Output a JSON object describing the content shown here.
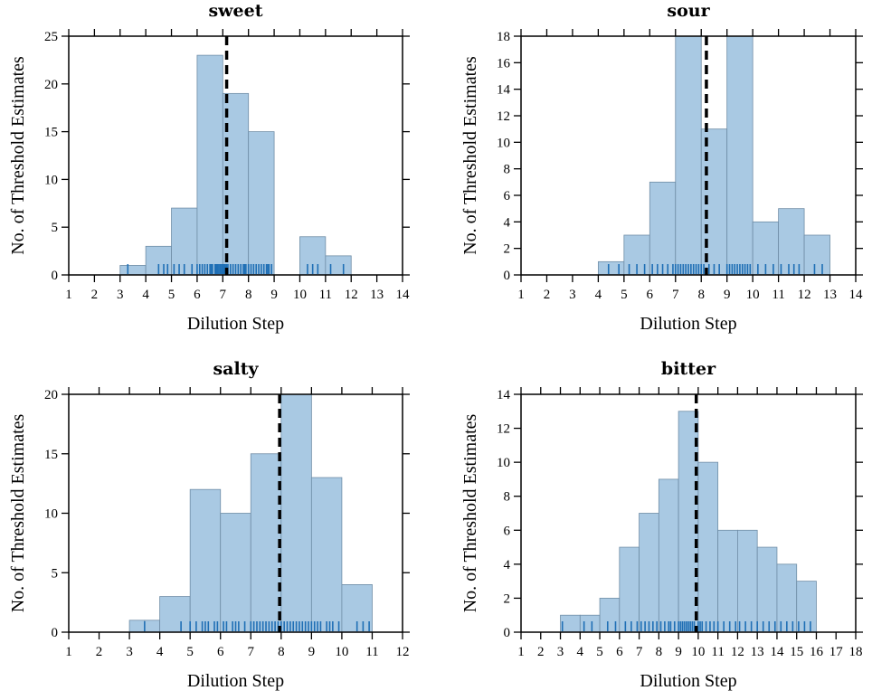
{
  "chart_data": [
    {
      "type": "histogram",
      "title": "sweet",
      "xlabel": "Dilution Step",
      "ylabel": "No. of Threshold Estimates",
      "xlim": [
        1,
        14
      ],
      "ylim": [
        0,
        25
      ],
      "xticks": [
        1,
        2,
        3,
        4,
        5,
        6,
        7,
        8,
        9,
        10,
        11,
        12,
        13,
        14
      ],
      "yticks": [
        0,
        5,
        10,
        15,
        20,
        25
      ],
      "bins": [
        {
          "start": 3,
          "end": 4,
          "count": 1
        },
        {
          "start": 4,
          "end": 5,
          "count": 3
        },
        {
          "start": 5,
          "end": 6,
          "count": 7
        },
        {
          "start": 6,
          "end": 7,
          "count": 23
        },
        {
          "start": 7,
          "end": 8,
          "count": 19
        },
        {
          "start": 8,
          "end": 9,
          "count": 15
        },
        {
          "start": 9,
          "end": 10,
          "count": 0
        },
        {
          "start": 10,
          "end": 11,
          "count": 4
        },
        {
          "start": 11,
          "end": 12,
          "count": 2
        }
      ],
      "reference_line": 7.15,
      "rug": [
        3.3,
        4.5,
        4.7,
        4.85,
        5.1,
        5.3,
        5.5,
        5.8,
        6.0,
        6.1,
        6.2,
        6.3,
        6.4,
        6.5,
        6.55,
        6.6,
        6.7,
        6.75,
        6.8,
        6.85,
        6.9,
        6.95,
        7.0,
        7.05,
        7.1,
        7.15,
        7.2,
        7.3,
        7.4,
        7.5,
        7.6,
        7.7,
        7.8,
        7.85,
        7.9,
        8.0,
        8.1,
        8.2,
        8.3,
        8.4,
        8.5,
        8.6,
        8.7,
        8.75,
        8.8,
        8.9,
        10.3,
        10.5,
        10.7,
        11.2,
        11.7
      ]
    },
    {
      "type": "histogram",
      "title": "sour",
      "xlabel": "Dilution Step",
      "ylabel": "No. of Threshold Estimates",
      "xlim": [
        1,
        14
      ],
      "ylim": [
        0,
        18
      ],
      "xticks": [
        1,
        2,
        3,
        4,
        5,
        6,
        7,
        8,
        9,
        10,
        11,
        12,
        13,
        14
      ],
      "yticks": [
        0,
        2,
        4,
        6,
        8,
        10,
        12,
        14,
        16,
        18
      ],
      "bins": [
        {
          "start": 4,
          "end": 5,
          "count": 1
        },
        {
          "start": 5,
          "end": 6,
          "count": 3
        },
        {
          "start": 6,
          "end": 7,
          "count": 7
        },
        {
          "start": 7,
          "end": 8,
          "count": 18
        },
        {
          "start": 8,
          "end": 9,
          "count": 11
        },
        {
          "start": 9,
          "end": 10,
          "count": 18
        },
        {
          "start": 10,
          "end": 11,
          "count": 4
        },
        {
          "start": 11,
          "end": 12,
          "count": 5
        },
        {
          "start": 12,
          "end": 13,
          "count": 3
        }
      ],
      "reference_line": 8.2,
      "rug": [
        4.4,
        4.8,
        5.2,
        5.5,
        5.8,
        6.1,
        6.3,
        6.5,
        6.7,
        6.9,
        7.0,
        7.1,
        7.2,
        7.3,
        7.4,
        7.5,
        7.6,
        7.7,
        7.8,
        7.9,
        8.0,
        8.1,
        8.3,
        8.5,
        8.7,
        9.0,
        9.1,
        9.2,
        9.3,
        9.4,
        9.5,
        9.6,
        9.7,
        9.8,
        9.9,
        10.2,
        10.5,
        10.8,
        11.1,
        11.4,
        11.6,
        11.8,
        12.4,
        12.7
      ]
    },
    {
      "type": "histogram",
      "title": "salty",
      "xlabel": "Dilution Step",
      "ylabel": "No. of Threshold Estimates",
      "xlim": [
        1,
        12
      ],
      "ylim": [
        0,
        20
      ],
      "xticks": [
        1,
        2,
        3,
        4,
        5,
        6,
        7,
        8,
        9,
        10,
        11,
        12
      ],
      "yticks": [
        0,
        5,
        10,
        15,
        20
      ],
      "bins": [
        {
          "start": 3,
          "end": 3.5,
          "count": 1
        },
        {
          "start": 3.5,
          "end": 4,
          "count": 1
        },
        {
          "start": 4,
          "end": 5,
          "count": 3
        },
        {
          "start": 5,
          "end": 6,
          "count": 12
        },
        {
          "start": 6,
          "end": 7,
          "count": 10
        },
        {
          "start": 7,
          "end": 8,
          "count": 15
        },
        {
          "start": 8,
          "end": 9,
          "count": 20
        },
        {
          "start": 9,
          "end": 10,
          "count": 13
        },
        {
          "start": 10,
          "end": 11,
          "count": 4
        }
      ],
      "reference_line": 7.95,
      "rug": [
        3.5,
        4.7,
        5.0,
        5.2,
        5.4,
        5.5,
        5.6,
        5.8,
        5.9,
        6.1,
        6.2,
        6.4,
        6.5,
        6.6,
        6.8,
        7.0,
        7.1,
        7.2,
        7.3,
        7.4,
        7.5,
        7.6,
        7.7,
        7.8,
        7.9,
        8.0,
        8.1,
        8.2,
        8.3,
        8.4,
        8.5,
        8.6,
        8.7,
        8.8,
        8.9,
        9.0,
        9.1,
        9.2,
        9.3,
        9.5,
        9.6,
        9.7,
        9.9,
        10.5,
        10.7,
        10.9
      ]
    },
    {
      "type": "histogram",
      "title": "bitter",
      "xlabel": "Dilution Step",
      "ylabel": "No. of Threshold Estimates",
      "xlim": [
        1,
        18
      ],
      "ylim": [
        0,
        14
      ],
      "xticks": [
        1,
        2,
        3,
        4,
        5,
        6,
        7,
        8,
        9,
        10,
        11,
        12,
        13,
        14,
        15,
        16,
        17,
        18
      ],
      "yticks": [
        0,
        2,
        4,
        6,
        8,
        10,
        12,
        14
      ],
      "bins": [
        {
          "start": 3,
          "end": 4,
          "count": 1
        },
        {
          "start": 4,
          "end": 5,
          "count": 1
        },
        {
          "start": 5,
          "end": 6,
          "count": 2
        },
        {
          "start": 6,
          "end": 7,
          "count": 5
        },
        {
          "start": 7,
          "end": 8,
          "count": 7
        },
        {
          "start": 8,
          "end": 9,
          "count": 9
        },
        {
          "start": 9,
          "end": 10,
          "count": 13
        },
        {
          "start": 10,
          "end": 11,
          "count": 10
        },
        {
          "start": 11,
          "end": 12,
          "count": 6
        },
        {
          "start": 12,
          "end": 13,
          "count": 6
        },
        {
          "start": 13,
          "end": 14,
          "count": 5
        },
        {
          "start": 14,
          "end": 15,
          "count": 4
        },
        {
          "start": 15,
          "end": 16,
          "count": 3
        }
      ],
      "reference_line": 9.9,
      "rug": [
        3.1,
        4.2,
        4.6,
        5.4,
        5.8,
        6.3,
        6.6,
        6.9,
        7.1,
        7.3,
        7.5,
        7.7,
        7.9,
        8.1,
        8.3,
        8.5,
        8.6,
        8.8,
        9.0,
        9.1,
        9.2,
        9.3,
        9.4,
        9.5,
        9.6,
        9.7,
        9.8,
        10.0,
        10.1,
        10.2,
        10.4,
        10.6,
        10.8,
        11.0,
        11.3,
        11.6,
        11.9,
        12.1,
        12.4,
        12.7,
        13.0,
        13.3,
        13.6,
        13.9,
        14.2,
        14.5,
        14.8,
        15.1,
        15.4,
        15.7
      ]
    }
  ]
}
